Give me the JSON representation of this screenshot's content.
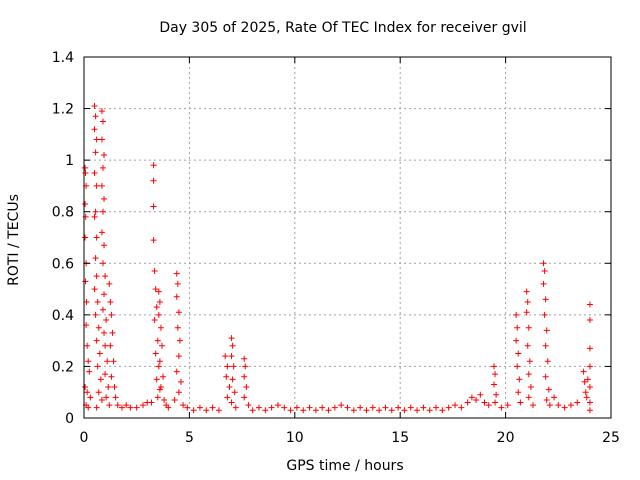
{
  "chart_data": {
    "type": "scatter",
    "title": "Day 305 of 2025, Rate Of TEC Index for receiver gvil",
    "xlabel": "GPS time / hours",
    "ylabel": "ROTI / TECUs",
    "xlim": [
      0,
      25
    ],
    "ylim": [
      0,
      1.4
    ],
    "x_ticks": [
      0,
      5,
      10,
      15,
      20,
      25
    ],
    "y_ticks": [
      0,
      0.2,
      0.4,
      0.6,
      0.8,
      1,
      1.2,
      1.4
    ],
    "x_tick_labels": [
      "0",
      "5",
      "10",
      "15",
      "20",
      "25"
    ],
    "y_tick_labels": [
      "0",
      "0.2",
      "0.4",
      "0.6",
      "0.8",
      "1",
      "1.2",
      "1.4"
    ],
    "grid": true,
    "marker": "plus",
    "color": "#ff0000",
    "series": [
      {
        "name": "ROTI",
        "points": [
          [
            0.05,
            0.97
          ],
          [
            0.07,
            0.95
          ],
          [
            0.1,
            0.9
          ],
          [
            0.05,
            0.83
          ],
          [
            0.08,
            0.78
          ],
          [
            0.05,
            0.7
          ],
          [
            0.1,
            0.6
          ],
          [
            0.07,
            0.53
          ],
          [
            0.12,
            0.45
          ],
          [
            0.1,
            0.36
          ],
          [
            0.15,
            0.28
          ],
          [
            0.2,
            0.22
          ],
          [
            0.25,
            0.18
          ],
          [
            0.05,
            0.12
          ],
          [
            0.15,
            0.1
          ],
          [
            0.3,
            0.08
          ],
          [
            0.1,
            0.05
          ],
          [
            0.2,
            0.04
          ],
          [
            0.5,
            1.21
          ],
          [
            0.55,
            1.17
          ],
          [
            0.5,
            1.12
          ],
          [
            0.6,
            1.08
          ],
          [
            0.55,
            1.03
          ],
          [
            0.5,
            0.95
          ],
          [
            0.6,
            0.9
          ],
          [
            0.55,
            0.8
          ],
          [
            0.5,
            0.78
          ],
          [
            0.6,
            0.7
          ],
          [
            0.55,
            0.62
          ],
          [
            0.6,
            0.55
          ],
          [
            0.5,
            0.5
          ],
          [
            0.65,
            0.45
          ],
          [
            0.55,
            0.4
          ],
          [
            0.7,
            0.35
          ],
          [
            0.6,
            0.3
          ],
          [
            0.75,
            0.25
          ],
          [
            0.65,
            0.2
          ],
          [
            0.8,
            0.15
          ],
          [
            0.7,
            0.1
          ],
          [
            0.85,
            0.07
          ],
          [
            0.6,
            0.04
          ],
          [
            0.85,
            1.19
          ],
          [
            0.9,
            1.15
          ],
          [
            0.85,
            1.08
          ],
          [
            0.95,
            1.02
          ],
          [
            0.9,
            0.97
          ],
          [
            0.85,
            0.9
          ],
          [
            0.95,
            0.85
          ],
          [
            0.9,
            0.8
          ],
          [
            0.85,
            0.72
          ],
          [
            0.95,
            0.67
          ],
          [
            0.9,
            0.6
          ],
          [
            1.0,
            0.55
          ],
          [
            0.95,
            0.48
          ],
          [
            0.9,
            0.42
          ],
          [
            1.05,
            0.38
          ],
          [
            0.95,
            0.33
          ],
          [
            1.0,
            0.28
          ],
          [
            1.1,
            0.22
          ],
          [
            1.0,
            0.17
          ],
          [
            1.15,
            0.12
          ],
          [
            1.05,
            0.08
          ],
          [
            1.2,
            0.05
          ],
          [
            1.2,
            0.52
          ],
          [
            1.25,
            0.45
          ],
          [
            1.3,
            0.4
          ],
          [
            1.35,
            0.33
          ],
          [
            1.25,
            0.28
          ],
          [
            1.4,
            0.22
          ],
          [
            1.3,
            0.16
          ],
          [
            1.45,
            0.12
          ],
          [
            1.5,
            0.08
          ],
          [
            1.6,
            0.05
          ],
          [
            1.8,
            0.04
          ],
          [
            2.0,
            0.05
          ],
          [
            2.2,
            0.04
          ],
          [
            2.5,
            0.04
          ],
          [
            2.8,
            0.05
          ],
          [
            3.0,
            0.06
          ],
          [
            3.3,
            0.98
          ],
          [
            3.3,
            0.92
          ],
          [
            3.3,
            0.82
          ],
          [
            3.3,
            0.69
          ],
          [
            3.35,
            0.57
          ],
          [
            3.4,
            0.5
          ],
          [
            3.45,
            0.43
          ],
          [
            3.35,
            0.38
          ],
          [
            3.5,
            0.3
          ],
          [
            3.4,
            0.25
          ],
          [
            3.55,
            0.2
          ],
          [
            3.45,
            0.15
          ],
          [
            3.6,
            0.11
          ],
          [
            3.5,
            0.08
          ],
          [
            3.2,
            0.06
          ],
          [
            3.55,
            0.49
          ],
          [
            3.6,
            0.45
          ],
          [
            3.55,
            0.4
          ],
          [
            3.65,
            0.35
          ],
          [
            3.7,
            0.28
          ],
          [
            3.6,
            0.22
          ],
          [
            3.75,
            0.16
          ],
          [
            3.65,
            0.12
          ],
          [
            3.8,
            0.07
          ],
          [
            3.9,
            0.05
          ],
          [
            4.0,
            0.04
          ],
          [
            4.4,
            0.56
          ],
          [
            4.45,
            0.52
          ],
          [
            4.4,
            0.47
          ],
          [
            4.5,
            0.41
          ],
          [
            4.45,
            0.35
          ],
          [
            4.55,
            0.3
          ],
          [
            4.5,
            0.24
          ],
          [
            4.4,
            0.18
          ],
          [
            4.6,
            0.14
          ],
          [
            4.5,
            0.1
          ],
          [
            4.3,
            0.07
          ],
          [
            4.7,
            0.05
          ],
          [
            4.9,
            0.04
          ],
          [
            5.2,
            0.03
          ],
          [
            5.5,
            0.04
          ],
          [
            5.8,
            0.03
          ],
          [
            6.1,
            0.04
          ],
          [
            6.4,
            0.03
          ],
          [
            6.7,
            0.24
          ],
          [
            6.8,
            0.2
          ],
          [
            6.75,
            0.16
          ],
          [
            6.9,
            0.12
          ],
          [
            6.8,
            0.08
          ],
          [
            7.0,
            0.31
          ],
          [
            7.05,
            0.28
          ],
          [
            7.0,
            0.24
          ],
          [
            7.1,
            0.2
          ],
          [
            7.05,
            0.15
          ],
          [
            7.15,
            0.1
          ],
          [
            7.0,
            0.06
          ],
          [
            7.2,
            0.04
          ],
          [
            7.6,
            0.23
          ],
          [
            7.65,
            0.2
          ],
          [
            7.6,
            0.16
          ],
          [
            7.7,
            0.12
          ],
          [
            7.6,
            0.08
          ],
          [
            7.8,
            0.05
          ],
          [
            8.0,
            0.03
          ],
          [
            8.3,
            0.04
          ],
          [
            8.6,
            0.03
          ],
          [
            8.9,
            0.04
          ],
          [
            9.2,
            0.05
          ],
          [
            9.5,
            0.04
          ],
          [
            9.8,
            0.03
          ],
          [
            10.1,
            0.04
          ],
          [
            10.4,
            0.03
          ],
          [
            10.7,
            0.04
          ],
          [
            11.0,
            0.03
          ],
          [
            11.3,
            0.04
          ],
          [
            11.6,
            0.03
          ],
          [
            11.9,
            0.04
          ],
          [
            12.2,
            0.05
          ],
          [
            12.5,
            0.04
          ],
          [
            12.8,
            0.03
          ],
          [
            13.1,
            0.04
          ],
          [
            13.4,
            0.03
          ],
          [
            13.7,
            0.04
          ],
          [
            14.0,
            0.03
          ],
          [
            14.3,
            0.04
          ],
          [
            14.6,
            0.03
          ],
          [
            14.9,
            0.04
          ],
          [
            15.2,
            0.03
          ],
          [
            15.5,
            0.04
          ],
          [
            15.8,
            0.03
          ],
          [
            16.1,
            0.04
          ],
          [
            16.4,
            0.03
          ],
          [
            16.7,
            0.04
          ],
          [
            17.0,
            0.03
          ],
          [
            17.3,
            0.04
          ],
          [
            17.6,
            0.05
          ],
          [
            17.9,
            0.04
          ],
          [
            18.2,
            0.06
          ],
          [
            18.4,
            0.08
          ],
          [
            18.6,
            0.07
          ],
          [
            18.8,
            0.09
          ],
          [
            19.0,
            0.06
          ],
          [
            19.2,
            0.05
          ],
          [
            19.45,
            0.2
          ],
          [
            19.5,
            0.17
          ],
          [
            19.45,
            0.13
          ],
          [
            19.55,
            0.09
          ],
          [
            19.5,
            0.06
          ],
          [
            19.8,
            0.04
          ],
          [
            20.1,
            0.05
          ],
          [
            20.5,
            0.4
          ],
          [
            20.55,
            0.35
          ],
          [
            20.5,
            0.3
          ],
          [
            20.6,
            0.25
          ],
          [
            20.55,
            0.2
          ],
          [
            20.65,
            0.15
          ],
          [
            20.6,
            0.1
          ],
          [
            20.7,
            0.06
          ],
          [
            21.0,
            0.49
          ],
          [
            21.05,
            0.45
          ],
          [
            21.0,
            0.41
          ],
          [
            21.1,
            0.35
          ],
          [
            21.05,
            0.28
          ],
          [
            21.15,
            0.22
          ],
          [
            21.1,
            0.17
          ],
          [
            21.2,
            0.12
          ],
          [
            21.1,
            0.08
          ],
          [
            21.3,
            0.05
          ],
          [
            21.8,
            0.6
          ],
          [
            21.85,
            0.57
          ],
          [
            21.8,
            0.52
          ],
          [
            21.9,
            0.46
          ],
          [
            21.85,
            0.4
          ],
          [
            21.95,
            0.34
          ],
          [
            21.9,
            0.28
          ],
          [
            22.0,
            0.22
          ],
          [
            21.9,
            0.16
          ],
          [
            22.05,
            0.11
          ],
          [
            21.95,
            0.07
          ],
          [
            22.1,
            0.05
          ],
          [
            22.3,
            0.08
          ],
          [
            22.5,
            0.05
          ],
          [
            22.8,
            0.04
          ],
          [
            23.1,
            0.05
          ],
          [
            23.4,
            0.06
          ],
          [
            23.7,
            0.18
          ],
          [
            23.75,
            0.14
          ],
          [
            23.8,
            0.1
          ],
          [
            23.9,
            0.15
          ],
          [
            23.85,
            0.08
          ],
          [
            24.0,
            0.44
          ],
          [
            24.0,
            0.38
          ],
          [
            24.0,
            0.27
          ],
          [
            24.0,
            0.2
          ],
          [
            24.0,
            0.12
          ],
          [
            24.0,
            0.06
          ],
          [
            24.0,
            0.03
          ]
        ]
      }
    ]
  }
}
